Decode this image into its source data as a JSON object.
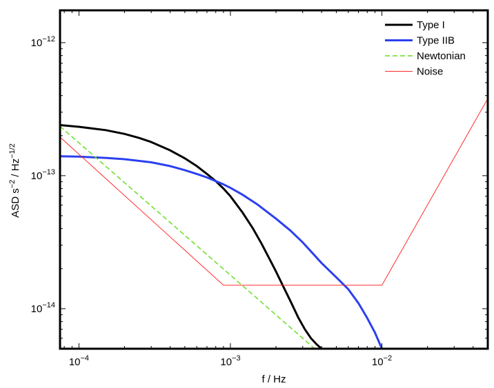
{
  "chart_data": {
    "type": "line",
    "xscale": "log",
    "yscale": "log",
    "xlim": [
      7.5e-05,
      0.05
    ],
    "ylim": [
      5e-15,
      1.75e-12
    ],
    "xlabel": "f / Hz",
    "ylabel": "ASD s−2 / Hz−1/2",
    "x_ticks": [
      {
        "value": 0.0001,
        "base": "10",
        "exp": "−4"
      },
      {
        "value": 0.001,
        "base": "10",
        "exp": "−3"
      },
      {
        "value": 0.01,
        "base": "10",
        "exp": "−2"
      }
    ],
    "y_ticks": [
      {
        "value": 1e-14,
        "base": "10",
        "exp": "−14"
      },
      {
        "value": 1e-13,
        "base": "10",
        "exp": "−13"
      },
      {
        "value": 1e-12,
        "base": "10",
        "exp": "−12"
      }
    ],
    "grid": false,
    "legend_position": "top-right",
    "series": [
      {
        "name": "Type I",
        "color": "#000000",
        "style": "solid",
        "width": 3,
        "x": [
          7.5e-05,
          0.0001,
          0.00015,
          0.0002,
          0.00025,
          0.0003,
          0.0004,
          0.0005,
          0.0006,
          0.0007,
          0.0008,
          0.0009,
          0.001,
          0.0012,
          0.0014,
          0.0016,
          0.0018,
          0.002,
          0.0022,
          0.0025,
          0.0028,
          0.0031,
          0.0034,
          0.0037,
          0.004
        ],
        "y": [
          2.4e-13,
          2.33e-13,
          2.2e-13,
          2.06e-13,
          1.92e-13,
          1.79e-13,
          1.55e-13,
          1.35e-13,
          1.18e-13,
          1.03e-13,
          9.1e-14,
          8e-14,
          7e-14,
          5.3e-14,
          4.05e-14,
          3.1e-14,
          2.4e-14,
          1.9e-14,
          1.52e-14,
          1.13e-14,
          8.6e-15,
          7e-15,
          6e-15,
          5.4e-15,
          5e-15
        ]
      },
      {
        "name": "Type IIB",
        "color": "#2a3ff0",
        "style": "solid",
        "width": 3,
        "x": [
          7.5e-05,
          0.0001,
          0.00015,
          0.0002,
          0.0003,
          0.0004,
          0.0005,
          0.0006,
          0.0007,
          0.0008,
          0.0009,
          0.001,
          0.0012,
          0.0015,
          0.002,
          0.0025,
          0.003,
          0.0035,
          0.004,
          0.005,
          0.006,
          0.007,
          0.008,
          0.009,
          0.01
        ],
        "y": [
          1.4e-13,
          1.39e-13,
          1.36e-13,
          1.33e-13,
          1.26e-13,
          1.18e-13,
          1.1e-13,
          1.03e-13,
          9.7e-14,
          9.1e-14,
          8.6e-14,
          8.1e-14,
          7.2e-14,
          6.1e-14,
          4.75e-14,
          3.85e-14,
          3.15e-14,
          2.6e-14,
          2.2e-14,
          1.72e-14,
          1.4e-14,
          1.1e-14,
          8.5e-15,
          6.6e-15,
          5e-15
        ]
      },
      {
        "name": "Newtonian",
        "color": "#66dd22",
        "style": "dashed",
        "width": 1.5,
        "x": [
          7.5e-05,
          0.0036
        ],
        "y": [
          2.35e-13,
          5e-15
        ]
      },
      {
        "name": "Noise",
        "color": "#ff2a2a",
        "style": "solid",
        "width": 1,
        "x": [
          7.5e-05,
          0.0009,
          0.01,
          0.05
        ],
        "y": [
          1.95e-13,
          1.5e-14,
          1.5e-14,
          3.8e-13
        ]
      }
    ]
  }
}
